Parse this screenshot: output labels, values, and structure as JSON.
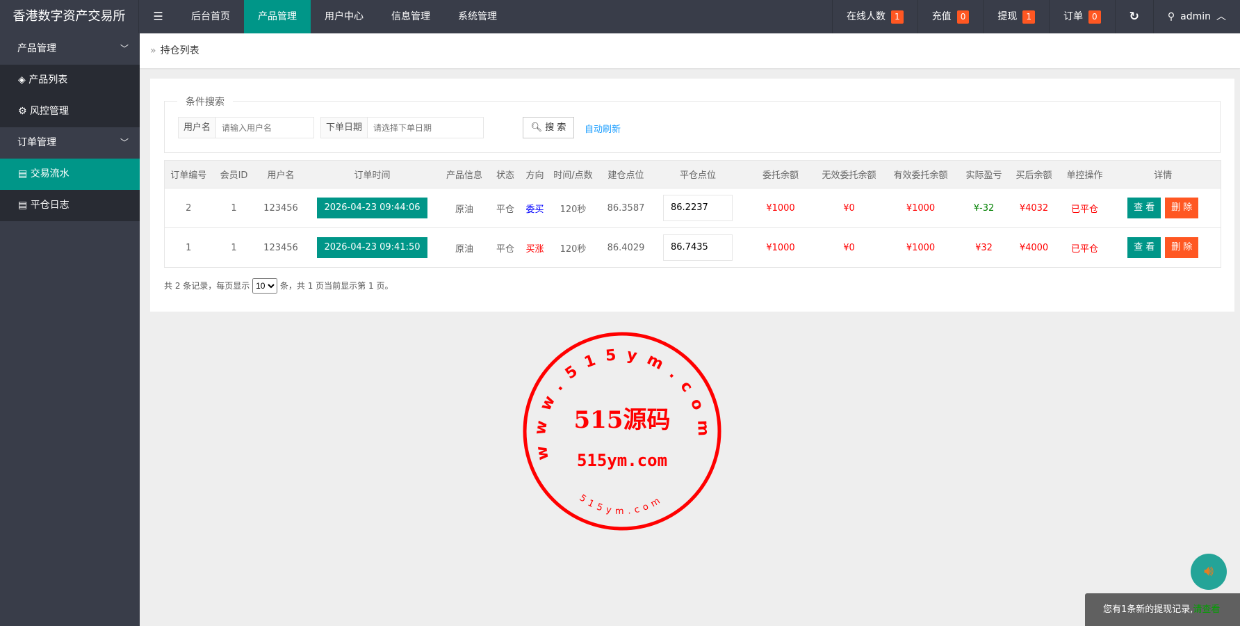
{
  "header": {
    "logo": "香港数字资产交易所",
    "menu_icon": "hamburger-icon",
    "nav": [
      {
        "label": "后台首页"
      },
      {
        "label": "产品管理",
        "active": true
      },
      {
        "label": "用户中心"
      },
      {
        "label": "信息管理"
      },
      {
        "label": "系统管理"
      }
    ],
    "stats": [
      {
        "label": "在线人数",
        "count": "1"
      },
      {
        "label": "充值",
        "count": "0"
      },
      {
        "label": "提现",
        "count": "1"
      },
      {
        "label": "订单",
        "count": "0"
      }
    ],
    "refresh_icon": "refresh-icon",
    "user": "admin"
  },
  "sidebar": {
    "groups": [
      {
        "label": "产品管理",
        "items": [
          {
            "label": "产品列表",
            "icon": "layers-icon"
          },
          {
            "label": "风控管理",
            "icon": "gear-icon"
          }
        ]
      },
      {
        "label": "订单管理",
        "items": [
          {
            "label": "交易流水",
            "icon": "clipboard-icon",
            "active": true
          },
          {
            "label": "平仓日志",
            "icon": "clipboard-icon"
          }
        ]
      }
    ]
  },
  "breadcrumb": {
    "sep": "»",
    "current": "持仓列表"
  },
  "search": {
    "legend": "条件搜索",
    "username_label": "用户名",
    "username_placeholder": "请输入用户名",
    "date_label": "下单日期",
    "date_placeholder": "请选择下单日期",
    "button": "搜 索",
    "auto_refresh": "自动刷新"
  },
  "table": {
    "headers": [
      "订单编号",
      "会员ID",
      "用户名",
      "订单时间",
      "产品信息",
      "状态",
      "方向",
      "时间/点数",
      "建仓点位",
      "平仓点位",
      "委托余额",
      "无效委托余额",
      "有效委托余额",
      "实际盈亏",
      "买后余额",
      "单控操作",
      "详情"
    ],
    "rows": [
      {
        "id": "2",
        "member": "1",
        "user": "123456",
        "time": "2026-04-23 09:44:06",
        "product": "原油",
        "status": "平仓",
        "dir": "委买",
        "dir_color": "#0000ff",
        "dur": "120秒",
        "open": "86.3587",
        "close": "86.2237",
        "amt": "¥1000",
        "invalid": "¥0",
        "valid": "¥1000",
        "pl": "¥-32",
        "pl_color": "#008000",
        "after": "¥4032",
        "ctrl": "已平仓",
        "view": "查 看",
        "del": "删 除"
      },
      {
        "id": "1",
        "member": "1",
        "user": "123456",
        "time": "2026-04-23 09:41:50",
        "product": "原油",
        "status": "平仓",
        "dir": "买涨",
        "dir_color": "#ff0000",
        "dur": "120秒",
        "open": "86.4029",
        "close": "86.7435",
        "amt": "¥1000",
        "invalid": "¥0",
        "valid": "¥1000",
        "pl": "¥32",
        "pl_color": "#ff0000",
        "after": "¥4000",
        "ctrl": "已平仓",
        "view": "查 看",
        "del": "删 除"
      }
    ]
  },
  "pager": {
    "before": "共 2 条记录，每页显示",
    "per_page": "10",
    "after": "条，共 1 页当前显示第 1 页。"
  },
  "watermark": {
    "center": "515源码",
    "domain": "515ym.com",
    "ring_top": "www.515ym.com",
    "ring_bottom": "515ym.com"
  },
  "toast": {
    "text": "您有1条新的提现记录,",
    "link": "请查看"
  },
  "colors": {
    "topbar": "#393d49",
    "accent": "#009688",
    "badge": "#ff5722",
    "danger": "#ff5722"
  }
}
